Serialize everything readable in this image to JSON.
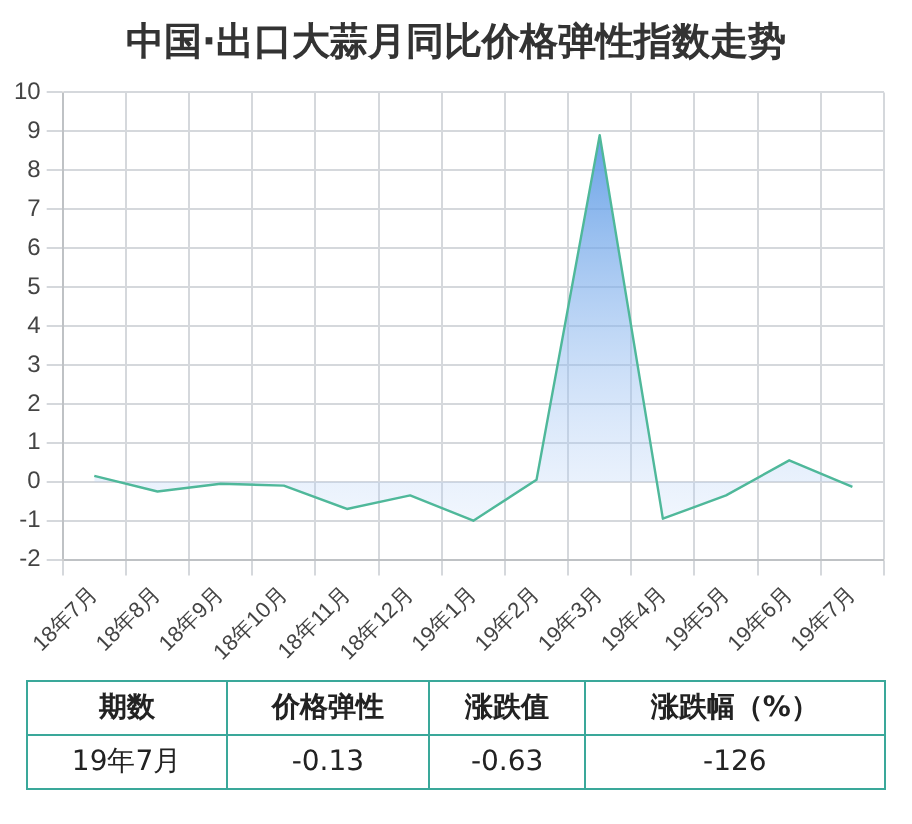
{
  "chart_data": {
    "type": "area",
    "title": "中国·出口大蒜月同比价格弹性指数走势",
    "categories": [
      "18年7月",
      "18年8月",
      "18年9月",
      "18年10月",
      "18年11月",
      "18年12月",
      "19年1月",
      "19年2月",
      "19年3月",
      "19年4月",
      "19年5月",
      "19年6月",
      "19年7月"
    ],
    "series": [
      {
        "color": "#4fb89a",
        "values": [
          0.15,
          -0.25,
          -0.05,
          -0.1,
          -0.7,
          -0.35,
          -1.0,
          0.05,
          8.9,
          -0.95,
          -0.35,
          0.55,
          -0.13
        ]
      }
    ],
    "ylim": [
      -2,
      10
    ],
    "yticks": [
      -2,
      -1,
      0,
      1,
      2,
      3,
      4,
      5,
      6,
      7,
      8,
      9,
      10
    ],
    "grid": true,
    "legend": false,
    "marker": "none",
    "annotations": [
      "期数",
      "价格弹性",
      "涨跌值",
      "涨跌幅（%）",
      "19年7月",
      "-0.13",
      "-0.63",
      "-126"
    ]
  }
}
